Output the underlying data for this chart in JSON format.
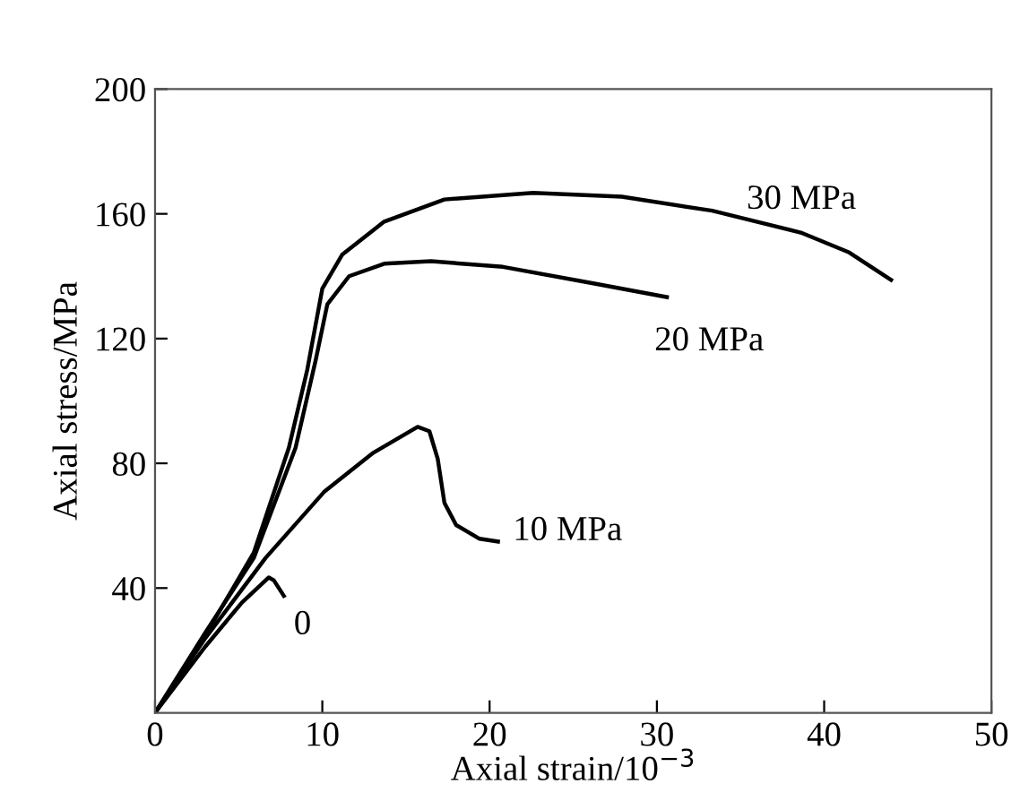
{
  "chart_data": {
    "type": "line",
    "xlabel": "Axial strain/10$^{−3}$",
    "ylabel": "Axial stress/MPa",
    "xlim": [
      0,
      50
    ],
    "xticks": [
      0,
      10,
      20,
      30,
      40,
      50
    ],
    "ylim": [
      0,
      200
    ],
    "yticks": [
      40,
      80,
      120,
      160,
      200
    ],
    "grid": false,
    "legend": false,
    "marker": "none",
    "line_style": "solid",
    "series": [
      {
        "name": "30 MPa",
        "color": "#000000",
        "x": [
          0,
          3.0,
          5.9,
          8.0,
          9.1,
          10.0,
          11.2,
          13.7,
          17.3,
          22.6,
          27.9,
          33.3,
          38.6,
          41.5,
          44.0
        ],
        "values": [
          0,
          24.8,
          51.3,
          85,
          110,
          136,
          147,
          157.5,
          164.6,
          166.7,
          165.5,
          161,
          154,
          147.6,
          138.8
        ]
      },
      {
        "name": "20 MPa",
        "color": "#000000",
        "x": [
          0,
          3.0,
          5.9,
          8.4,
          9.6,
          10.3,
          11.6,
          13.7,
          16.5,
          20.8,
          26.2,
          30.6
        ],
        "values": [
          0,
          25.7,
          49.6,
          85,
          113,
          131,
          140,
          144,
          144.8,
          143,
          137.7,
          133.3
        ]
      },
      {
        "name": "10 MPa",
        "color": "#000000",
        "x": [
          0,
          3.0,
          6.6,
          10.1,
          13.0,
          15.7,
          16.4,
          16.9,
          17.3,
          18.0,
          19.4,
          20.5
        ],
        "values": [
          0,
          23.9,
          49.6,
          70.8,
          83.2,
          91.7,
          90.3,
          81.4,
          67.3,
          60.2,
          55.8,
          54.9
        ]
      },
      {
        "name": "0",
        "color": "#000000",
        "x": [
          0,
          3.0,
          5.2,
          6.8,
          7.1,
          7.7
        ],
        "values": [
          0,
          21.2,
          35.4,
          43.4,
          42.5,
          37.5
        ]
      }
    ]
  }
}
